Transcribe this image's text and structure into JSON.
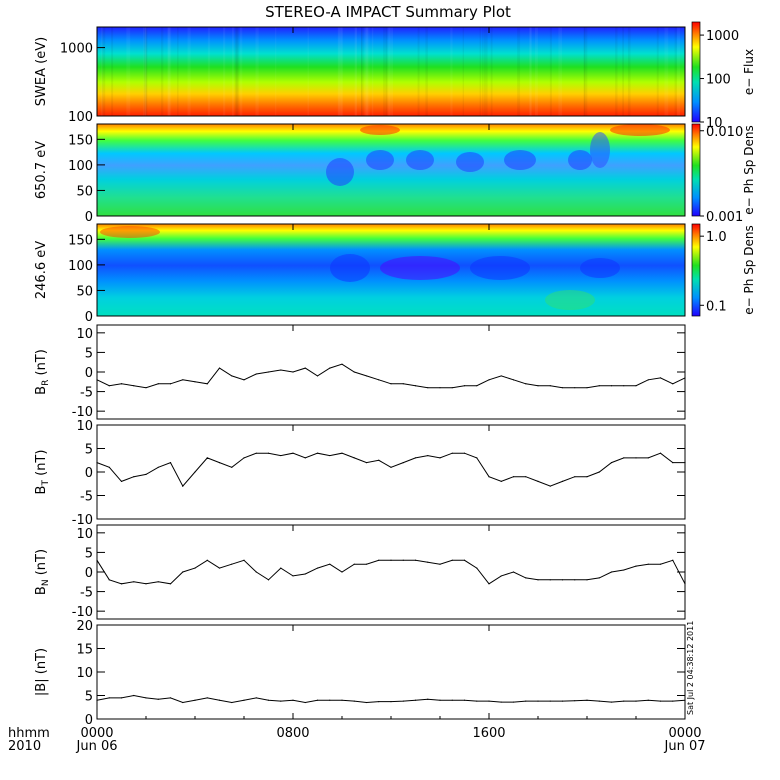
{
  "title": "STEREO-A IMPACT Summary Plot",
  "x_axis": {
    "row1_label": "hhmm",
    "row2_label": "2010",
    "ticks": [
      {
        "time": "0000",
        "date": "Jun 06",
        "hour": 0
      },
      {
        "time": "0800",
        "date": "",
        "hour": 8
      },
      {
        "time": "1600",
        "date": "",
        "hour": 16
      },
      {
        "time": "0000",
        "date": "Jun 07",
        "hour": 24
      }
    ]
  },
  "side_stamp": "Sat Jul  2 04:38:12 2011",
  "colors": {
    "line": "#000000",
    "background": "#ffffff"
  },
  "chart_data": [
    {
      "type": "heatmap",
      "ylabel": "SWEA (eV)",
      "y_scale": "log",
      "ylim": [
        100,
        2000
      ],
      "yticks": [
        "100",
        "1000"
      ],
      "colorbar": {
        "label": "e− Flux",
        "scale": "log",
        "range": [
          10,
          2000
        ],
        "ticks": [
          "10",
          "100",
          "1000"
        ]
      },
      "description_of_pattern": "flux high (red) near 100 eV, decreasing through yellow/green to blue near 2000 eV"
    },
    {
      "type": "heatmap",
      "ylabel": "650.7 eV",
      "ylim": [
        0,
        180
      ],
      "yticks": [
        "0",
        "50",
        "100",
        "150"
      ],
      "colorbar": {
        "label": "e− Ph Sp Dens",
        "scale": "log",
        "range": [
          0.001,
          0.012
        ],
        "ticks": [
          "0.001",
          "0.010"
        ]
      }
    },
    {
      "type": "heatmap",
      "ylabel": "246.6 eV",
      "ylim": [
        0,
        180
      ],
      "yticks": [
        "0",
        "50",
        "100",
        "150"
      ],
      "colorbar": {
        "label": "e− Ph Sp Dens",
        "scale": "log",
        "range": [
          0.07,
          1.5
        ],
        "ticks": [
          "0.1",
          "1.0"
        ]
      }
    },
    {
      "type": "line",
      "ylabel": "BR (nT)",
      "ylabel_main": "B",
      "ylabel_sub": "R",
      "ylabel_unit": " (nT)",
      "ylim": [
        -12,
        12
      ],
      "yticks": [
        "-10",
        "-5",
        "0",
        "5",
        "10"
      ],
      "x_hours": [
        0,
        0.5,
        1,
        1.5,
        2,
        2.5,
        3,
        3.5,
        4,
        4.5,
        5,
        5.5,
        6,
        6.5,
        7,
        7.5,
        8,
        8.5,
        9,
        9.5,
        10,
        10.5,
        11,
        11.5,
        12,
        12.5,
        13,
        13.5,
        14,
        14.5,
        15,
        15.5,
        16,
        16.5,
        17,
        17.5,
        18,
        18.5,
        19,
        19.5,
        20,
        20.5,
        21,
        21.5,
        22,
        22.5,
        23,
        23.5,
        24
      ],
      "values": [
        -2,
        -3.5,
        -3,
        -3.5,
        -4,
        -3,
        -3,
        -2,
        -2.5,
        -3,
        1,
        -1,
        -2,
        -0.5,
        0,
        0.5,
        0,
        1,
        -1,
        1,
        2,
        0,
        -1,
        -2,
        -3,
        -3,
        -3.5,
        -4,
        -4,
        -4,
        -3.5,
        -3.5,
        -2,
        -1,
        -2,
        -3,
        -3.5,
        -3.5,
        -4,
        -4,
        -4,
        -3.5,
        -3.5,
        -3.5,
        -3.5,
        -2,
        -1.5,
        -3,
        -1.5
      ]
    },
    {
      "type": "line",
      "ylabel": "BT (nT)",
      "ylabel_main": "B",
      "ylabel_sub": "T",
      "ylabel_unit": " (nT)",
      "ylim": [
        -10,
        10
      ],
      "yticks": [
        "-10",
        "-5",
        "0",
        "5",
        "10"
      ],
      "x_hours": [
        0,
        0.5,
        1,
        1.5,
        2,
        2.5,
        3,
        3.5,
        4,
        4.5,
        5,
        5.5,
        6,
        6.5,
        7,
        7.5,
        8,
        8.5,
        9,
        9.5,
        10,
        10.5,
        11,
        11.5,
        12,
        12.5,
        13,
        13.5,
        14,
        14.5,
        15,
        15.5,
        16,
        16.5,
        17,
        17.5,
        18,
        18.5,
        19,
        19.5,
        20,
        20.5,
        21,
        21.5,
        22,
        22.5,
        23,
        23.5,
        24
      ],
      "values": [
        2,
        1,
        -2,
        -1,
        -0.5,
        1,
        2,
        -3,
        0,
        3,
        2,
        1,
        3,
        4,
        4,
        3.5,
        4,
        3,
        4,
        3.5,
        4,
        3,
        2,
        2.5,
        1,
        2,
        3,
        3.5,
        3,
        4,
        4,
        3,
        -1,
        -2,
        -1,
        -1,
        -2,
        -3,
        -2,
        -1,
        -1,
        0,
        2,
        3,
        3,
        3,
        4,
        2,
        2
      ]
    },
    {
      "type": "line",
      "ylabel": "BN (nT)",
      "ylabel_main": "B",
      "ylabel_sub": "N",
      "ylabel_unit": " (nT)",
      "ylim": [
        -12,
        12
      ],
      "yticks": [
        "-10",
        "-5",
        "0",
        "5",
        "10"
      ],
      "x_hours": [
        0,
        0.5,
        1,
        1.5,
        2,
        2.5,
        3,
        3.5,
        4,
        4.5,
        5,
        5.5,
        6,
        6.5,
        7,
        7.5,
        8,
        8.5,
        9,
        9.5,
        10,
        10.5,
        11,
        11.5,
        12,
        12.5,
        13,
        13.5,
        14,
        14.5,
        15,
        15.5,
        16,
        16.5,
        17,
        17.5,
        18,
        18.5,
        19,
        19.5,
        20,
        20.5,
        21,
        21.5,
        22,
        22.5,
        23,
        23.5,
        24
      ],
      "values": [
        3,
        -2,
        -3,
        -2.5,
        -3,
        -2.5,
        -3,
        0,
        1,
        3,
        1,
        2,
        3,
        0,
        -2,
        1,
        -1,
        -0.5,
        1,
        2,
        0,
        2,
        2,
        3,
        3,
        3,
        3,
        2.5,
        2,
        3,
        3,
        1,
        -3,
        -1,
        0,
        -1.5,
        -2,
        -2,
        -2,
        -2,
        -2,
        -1.5,
        0,
        0.5,
        1.5,
        2,
        2,
        3,
        -3
      ]
    },
    {
      "type": "line",
      "ylabel": "|B| (nT)",
      "ylabel_main": "|B|",
      "ylabel_sub": "",
      "ylabel_unit": " (nT)",
      "ylim": [
        0,
        20
      ],
      "yticks": [
        "0",
        "5",
        "10",
        "15",
        "20"
      ],
      "x_hours": [
        0,
        0.5,
        1,
        1.5,
        2,
        2.5,
        3,
        3.5,
        4,
        4.5,
        5,
        5.5,
        6,
        6.5,
        7,
        7.5,
        8,
        8.5,
        9,
        9.5,
        10,
        10.5,
        11,
        11.5,
        12,
        12.5,
        13,
        13.5,
        14,
        14.5,
        15,
        15.5,
        16,
        16.5,
        17,
        17.5,
        18,
        18.5,
        19,
        19.5,
        20,
        20.5,
        21,
        21.5,
        22,
        22.5,
        23,
        23.5,
        24
      ],
      "values": [
        4,
        4.5,
        4.5,
        5,
        4.5,
        4.2,
        4.5,
        3.5,
        4,
        4.5,
        4,
        3.5,
        4,
        4.5,
        4,
        3.8,
        4,
        3.5,
        4,
        4,
        4,
        3.8,
        3.5,
        3.7,
        3.7,
        3.8,
        4,
        4.2,
        4,
        4,
        4,
        3.8,
        3.8,
        3.6,
        3.6,
        3.8,
        3.8,
        3.8,
        3.8,
        3.9,
        4,
        3.8,
        3.6,
        3.8,
        3.8,
        4,
        3.8,
        3.8,
        4
      ]
    }
  ]
}
